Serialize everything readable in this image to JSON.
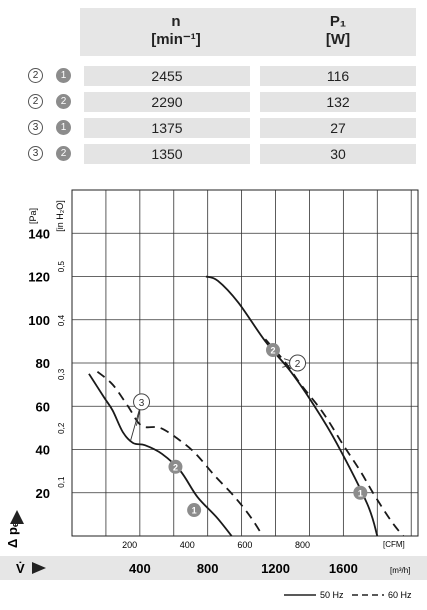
{
  "table": {
    "col_n_label": "n",
    "col_n_unit": "[min⁻¹]",
    "col_p_label": "P₁",
    "col_p_unit": "[W]",
    "rows": [
      {
        "curve": "2",
        "variant": "1",
        "n": "2455",
        "p": "116"
      },
      {
        "curve": "2",
        "variant": "2",
        "n": "2290",
        "p": "132"
      },
      {
        "curve": "3",
        "variant": "1",
        "n": "1375",
        "p": "27"
      },
      {
        "curve": "3",
        "variant": "2",
        "n": "1350",
        "p": "30"
      }
    ]
  },
  "chart_data": {
    "type": "line",
    "y_axis_left": {
      "unit": "[Pa]",
      "ticks": [
        20,
        40,
        60,
        80,
        100,
        120,
        140
      ],
      "range": [
        0,
        160
      ]
    },
    "y_axis_inner": {
      "unit": "[in H₂O]",
      "ticks": [
        "0,1",
        "0,2",
        "0,3",
        "0,4",
        "0,5"
      ]
    },
    "x_axis_cfm": {
      "unit": "[CFM]",
      "ticks": [
        200,
        400,
        600,
        800
      ]
    },
    "x_axis_m3h": {
      "unit": "[m³/h]",
      "ticks": [
        400,
        800,
        1200,
        1600
      ],
      "range": [
        0,
        2040
      ]
    },
    "ylabel": "Δ pₑₐ",
    "xlabel": "V̇",
    "grid": true,
    "series": [
      {
        "id": "2-1",
        "style": "solid",
        "points": [
          [
            790,
            120
          ],
          [
            860,
            118
          ],
          [
            980,
            108
          ],
          [
            1140,
            90
          ],
          [
            1290,
            76
          ],
          [
            1430,
            60
          ],
          [
            1560,
            43
          ],
          [
            1740,
            15
          ],
          [
            1800,
            0
          ]
        ]
      },
      {
        "id": "2-2",
        "style": "dashed",
        "points": [
          [
            1140,
            91
          ],
          [
            1260,
            80
          ],
          [
            1350,
            70
          ],
          [
            1480,
            57
          ],
          [
            1600,
            42
          ],
          [
            1700,
            30
          ],
          [
            1790,
            18
          ],
          [
            1900,
            5
          ],
          [
            2010,
            -5
          ]
        ]
      },
      {
        "id": "3-1",
        "style": "solid",
        "points": [
          [
            100,
            75
          ],
          [
            190,
            64
          ],
          [
            240,
            58
          ],
          [
            300,
            48
          ],
          [
            360,
            43
          ],
          [
            430,
            42
          ],
          [
            530,
            38
          ],
          [
            640,
            30
          ],
          [
            740,
            18
          ],
          [
            860,
            8
          ],
          [
            990,
            -5
          ]
        ]
      },
      {
        "id": "3-2",
        "style": "dashed",
        "points": [
          [
            150,
            76
          ],
          [
            240,
            70
          ],
          [
            330,
            60
          ],
          [
            410,
            51
          ],
          [
            520,
            50
          ],
          [
            640,
            44
          ],
          [
            730,
            38
          ],
          [
            840,
            28
          ],
          [
            960,
            18
          ],
          [
            1060,
            8
          ],
          [
            1140,
            -2
          ]
        ]
      }
    ],
    "annotations": [
      {
        "label": "3",
        "type": "open",
        "points_to": [
          "3-1",
          "3-2"
        ]
      },
      {
        "label": "2",
        "type": "open",
        "points_to": [
          "2-1",
          "2-2"
        ]
      },
      {
        "label": "2",
        "type": "filled",
        "on": "3-2"
      },
      {
        "label": "1",
        "type": "filled",
        "on": "3-1"
      },
      {
        "label": "2",
        "type": "filled",
        "on": "2-1"
      },
      {
        "label": "1",
        "type": "filled",
        "on": "2-1"
      }
    ],
    "legend": [
      {
        "label": "50 Hz",
        "style": "solid"
      },
      {
        "label": "60 Hz",
        "style": "dashed"
      }
    ]
  }
}
